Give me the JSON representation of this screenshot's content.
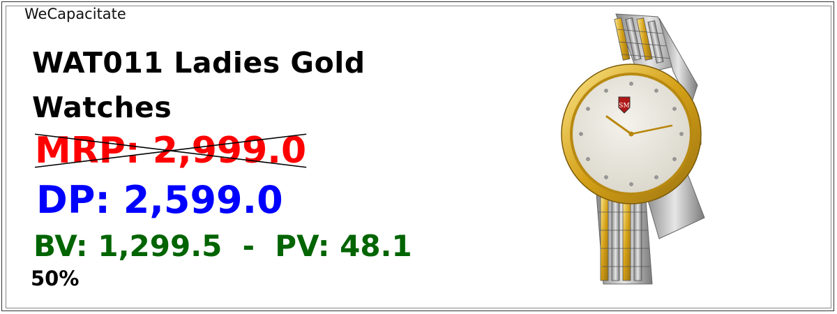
{
  "brand": "WeCapacitate",
  "product": {
    "title": "WAT011 Ladies Gold Watches",
    "mrp": "MRP: 2,999.0",
    "dp": "DP: 2,599.0",
    "bv_pv": "BV: 1,299.5  -  PV: 48.1",
    "discount": "50%",
    "image_icon": "wristwatch-icon"
  },
  "colors": {
    "mrp": "#ff0000",
    "dp": "#0000ff",
    "bv_pv": "#006400",
    "gold": "#d4a017",
    "silver": "#c0c0c0"
  }
}
